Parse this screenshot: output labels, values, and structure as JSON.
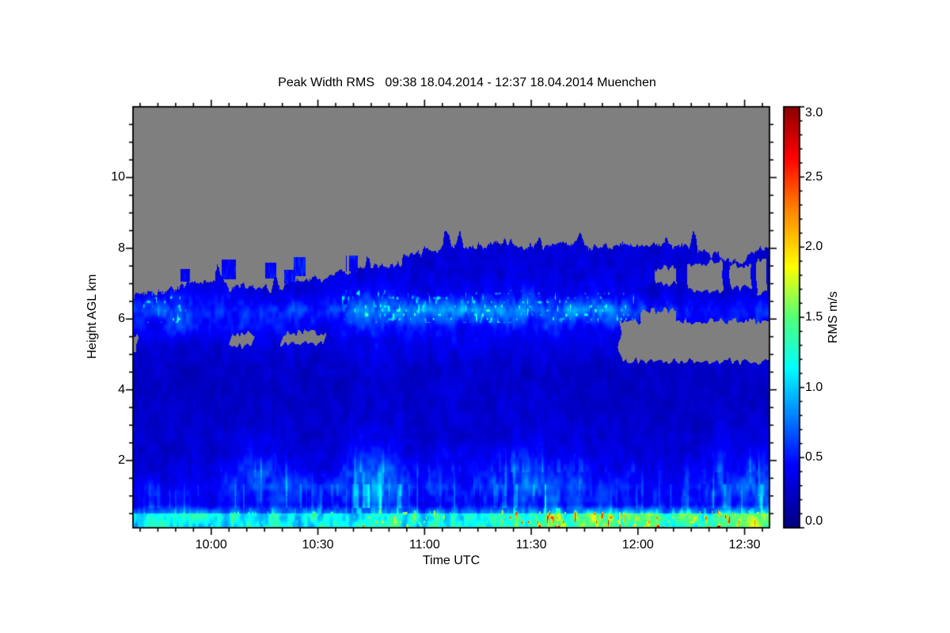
{
  "chart_data": {
    "type": "heatmap",
    "title": "Peak Width RMS   09:38 18.04.2014 - 12:37 18.04.2014 Muenchen",
    "xlabel": "Time UTC",
    "ylabel": "Height AGL km",
    "x_start": "09:38",
    "x_end": "12:37",
    "duration_min": 179,
    "x_ticks": [
      {
        "label": "10:00",
        "min": 22
      },
      {
        "label": "10:30",
        "min": 52
      },
      {
        "label": "11:00",
        "min": 82
      },
      {
        "label": "11:30",
        "min": 112
      },
      {
        "label": "12:00",
        "min": 142
      },
      {
        "label": "12:30",
        "min": 172
      }
    ],
    "x_minor_step_min": 5,
    "y_range_km": [
      0.1,
      12.0
    ],
    "y_ticks": [
      2,
      4,
      6,
      8,
      10
    ],
    "y_minor_step_km": 0.5,
    "colorbar": {
      "label": "RMS m/s",
      "min": 0.0,
      "max": 3.0,
      "ticks": [
        "0.0",
        "0.5",
        "1.0",
        "1.5",
        "2.0",
        "2.5",
        "3.0"
      ],
      "minor_step": 0.1,
      "colormap_stops": [
        [
          0.0,
          [
            0,
            0,
            127
          ]
        ],
        [
          0.15,
          [
            0,
            0,
            255
          ]
        ],
        [
          0.38,
          [
            0,
            255,
            255
          ]
        ],
        [
          0.5,
          [
            80,
            255,
            120
          ]
        ],
        [
          0.62,
          [
            255,
            255,
            0
          ]
        ],
        [
          0.76,
          [
            255,
            128,
            0
          ]
        ],
        [
          0.88,
          [
            255,
            0,
            0
          ]
        ],
        [
          1.0,
          [
            140,
            0,
            0
          ]
        ]
      ]
    },
    "no_data_color": "#7f7f7f",
    "axis_color": "#000000",
    "background_color": "#ffffff",
    "grid_time_step_min": 6,
    "grid_km_step": 0.5,
    "values": [
      [
        1.05,
        1.05,
        1.1,
        1.05,
        1.1,
        1.1,
        1.15,
        1.1,
        1.15,
        1.1,
        1.25,
        1.3,
        1.25,
        1.15,
        1.2,
        1.15,
        1.15,
        1.3,
        1.4,
        1.45,
        1.45,
        1.5,
        1.4,
        1.3,
        1.4,
        1.25,
        1.3,
        1.4,
        1.35,
        1.45
      ],
      [
        0.4,
        0.4,
        0.42,
        0.38,
        0.42,
        0.5,
        0.5,
        0.45,
        0.42,
        0.4,
        0.55,
        0.6,
        0.5,
        0.42,
        0.48,
        0.44,
        0.44,
        0.5,
        0.58,
        0.58,
        0.52,
        0.55,
        0.5,
        0.44,
        0.5,
        0.44,
        0.46,
        0.5,
        0.5,
        0.55
      ],
      [
        0.4,
        0.4,
        0.45,
        0.4,
        0.5,
        0.65,
        0.65,
        0.55,
        0.5,
        0.5,
        0.7,
        0.75,
        0.65,
        0.5,
        0.6,
        0.5,
        0.5,
        0.6,
        0.7,
        0.7,
        0.6,
        0.55,
        0.5,
        0.45,
        0.5,
        0.45,
        0.5,
        0.6,
        0.6,
        0.65
      ],
      [
        0.3,
        0.3,
        0.35,
        0.3,
        0.4,
        0.55,
        0.55,
        0.45,
        0.4,
        0.4,
        0.65,
        0.65,
        0.55,
        0.4,
        0.5,
        0.4,
        0.4,
        0.5,
        0.6,
        0.55,
        0.5,
        0.4,
        0.4,
        0.35,
        0.4,
        0.35,
        0.4,
        0.45,
        0.5,
        0.55
      ],
      [
        0.28,
        0.28,
        0.3,
        0.28,
        0.3,
        0.4,
        0.4,
        0.35,
        0.3,
        0.3,
        0.45,
        0.45,
        0.4,
        0.3,
        0.38,
        0.32,
        0.3,
        0.38,
        0.42,
        0.4,
        0.38,
        0.32,
        0.3,
        0.3,
        0.3,
        0.3,
        0.3,
        0.38,
        0.38,
        0.4
      ],
      [
        0.26,
        0.26,
        0.28,
        0.26,
        0.28,
        0.32,
        0.32,
        0.3,
        0.28,
        0.28,
        0.36,
        0.36,
        0.34,
        0.28,
        0.32,
        0.3,
        0.28,
        0.32,
        0.34,
        0.32,
        0.32,
        0.28,
        0.28,
        0.26,
        0.28,
        0.26,
        0.28,
        0.32,
        0.32,
        0.34
      ],
      [
        0.25,
        0.25,
        0.26,
        0.25,
        0.26,
        0.28,
        0.28,
        0.27,
        0.26,
        0.26,
        0.3,
        0.32,
        0.3,
        0.27,
        0.3,
        0.28,
        0.27,
        0.3,
        0.3,
        0.3,
        0.28,
        0.27,
        0.26,
        0.25,
        0.26,
        0.25,
        0.26,
        0.28,
        0.28,
        0.3
      ],
      [
        0.24,
        0.24,
        0.25,
        0.24,
        0.25,
        0.26,
        0.26,
        0.26,
        0.25,
        0.25,
        0.28,
        0.3,
        0.28,
        0.26,
        0.3,
        0.3,
        0.28,
        0.3,
        0.28,
        0.28,
        0.26,
        0.26,
        0.25,
        0.24,
        0.25,
        0.24,
        0.25,
        0.26,
        0.26,
        0.28
      ],
      [
        0.24,
        0.24,
        0.24,
        0.24,
        0.24,
        0.25,
        0.25,
        0.25,
        0.24,
        0.24,
        0.26,
        0.28,
        0.26,
        0.25,
        0.28,
        0.28,
        0.26,
        0.28,
        0.26,
        0.26,
        0.25,
        0.25,
        0.24,
        0.24,
        0.24,
        0.24,
        0.24,
        0.25,
        0.25,
        0.26
      ],
      [
        0.26,
        0.26,
        0.26,
        0.26,
        0.26,
        0.27,
        0.27,
        0.27,
        0.26,
        0.26,
        0.28,
        0.3,
        0.28,
        0.27,
        0.3,
        0.3,
        0.28,
        0.3,
        0.28,
        0.28,
        0.27,
        0.27,
        0.26,
        0.26,
        0.26,
        0.26,
        0.26,
        0.27,
        0.27,
        0.28
      ],
      [
        0.3,
        0.3,
        0.32,
        0.3,
        0.32,
        0.34,
        0.34,
        0.34,
        0.32,
        0.32,
        0.36,
        0.38,
        0.36,
        0.34,
        0.36,
        0.36,
        0.34,
        0.36,
        0.36,
        0.34,
        0.34,
        0.32,
        0.32,
        0.3,
        0.3,
        0.3,
        0.3,
        0.32,
        0.32,
        0.34
      ],
      [
        0.5,
        0.5,
        0.52,
        0.5,
        0.5,
        0.46,
        0.46,
        0.46,
        0.42,
        0.42,
        0.46,
        0.5,
        0.5,
        0.46,
        0.46,
        0.42,
        0.42,
        0.46,
        0.5,
        0.5,
        0.46,
        0.42,
        0.42,
        0.38,
        0.38,
        0.38,
        0.38,
        0.4,
        0.4,
        0.44
      ],
      [
        0.6,
        0.64,
        0.6,
        0.56,
        0.6,
        0.56,
        0.52,
        0.56,
        0.52,
        0.56,
        0.7,
        0.78,
        0.78,
        0.74,
        0.78,
        0.78,
        0.74,
        0.78,
        0.78,
        0.74,
        0.78,
        0.82,
        0.78,
        0.6,
        0.52,
        0.5,
        0.46,
        0.5,
        0.5,
        0.55
      ],
      [
        0.36,
        0.4,
        0.4,
        0.36,
        0.36,
        0.36,
        0.32,
        0.36,
        0.32,
        0.36,
        0.42,
        0.46,
        0.42,
        0.4,
        0.42,
        0.4,
        0.36,
        0.42,
        0.46,
        0.42,
        0.4,
        0.46,
        0.42,
        0.36,
        0.32,
        0.3,
        0.3,
        0.3,
        0.3,
        0.36
      ],
      [
        0.3,
        0.32,
        0.32,
        0.3,
        0.3,
        0.3,
        0.3,
        0.3,
        0.3,
        0.32,
        0.34,
        0.36,
        0.34,
        0.32,
        0.34,
        0.32,
        0.32,
        0.34,
        0.34,
        0.32,
        0.32,
        0.34,
        0.32,
        0.3,
        0.3,
        0.3,
        0.3,
        0.3,
        0.3,
        0.32
      ],
      [
        0.3,
        0.3,
        0.3,
        0.3,
        0.3,
        0.3,
        0.3,
        0.3,
        0.3,
        0.3,
        0.32,
        0.32,
        0.32,
        0.3,
        0.32,
        0.3,
        0.3,
        0.32,
        0.32,
        0.3,
        0.3,
        0.32,
        0.3,
        0.3,
        0.3,
        0.3,
        0.3,
        0.3,
        0.3,
        0.3
      ],
      [
        0.3,
        0.3,
        0.3,
        0.3,
        0.3,
        0.3,
        0.3,
        0.3,
        0.3,
        0.3,
        0.3,
        0.3,
        0.3,
        0.3,
        0.3,
        0.3,
        0.3,
        0.3,
        0.3,
        0.3,
        0.3,
        0.3,
        0.3,
        0.3,
        0.3,
        0.3,
        0.3,
        0.3,
        0.3,
        0.3
      ],
      [
        0.3,
        0.3,
        0.3,
        0.3,
        0.3,
        0.3,
        0.3,
        0.3,
        0.3,
        0.3,
        0.3,
        0.3,
        0.3,
        0.3,
        0.3,
        0.3,
        0.3,
        0.3,
        0.3,
        0.3,
        0.3,
        0.3,
        0.3,
        0.3,
        0.3,
        0.3,
        0.3,
        0.3,
        0.3,
        0.3
      ],
      [
        0.3,
        0.3,
        0.3,
        0.3,
        0.3,
        0.3,
        0.3,
        0.3,
        0.3,
        0.3,
        0.3,
        0.3,
        0.3,
        0.3,
        0.3,
        0.3,
        0.3,
        0.3,
        0.3,
        0.3,
        0.3,
        0.3,
        0.3,
        0.3,
        0.3,
        0.3,
        0.3,
        0.3,
        0.3,
        0.3
      ],
      [
        0.3,
        0.3,
        0.3,
        0.3,
        0.3,
        0.3,
        0.3,
        0.3,
        0.3,
        0.3,
        0.3,
        0.3,
        0.3,
        0.3,
        0.3,
        0.3,
        0.3,
        0.3,
        0.3,
        0.3,
        0.3,
        0.3,
        0.3,
        0.3,
        0.3,
        0.3,
        0.3,
        0.3,
        0.3,
        0.3
      ],
      [
        0.3,
        0.3,
        0.3,
        0.3,
        0.3,
        0.3,
        0.3,
        0.3,
        0.3,
        0.3,
        0.3,
        0.3,
        0.3,
        0.3,
        0.3,
        0.3,
        0.3,
        0.3,
        0.3,
        0.3,
        0.3,
        0.3,
        0.3,
        0.3,
        0.3,
        0.3,
        0.3,
        0.3,
        0.3,
        0.3
      ],
      [
        0.3,
        0.3,
        0.3,
        0.3,
        0.3,
        0.3,
        0.3,
        0.3,
        0.3,
        0.3,
        0.3,
        0.3,
        0.3,
        0.3,
        0.3,
        0.3,
        0.3,
        0.3,
        0.3,
        0.3,
        0.3,
        0.3,
        0.3,
        0.3,
        0.3,
        0.3,
        0.3,
        0.3,
        0.3,
        0.3
      ],
      [
        0.3,
        0.3,
        0.3,
        0.3,
        0.3,
        0.3,
        0.3,
        0.3,
        0.3,
        0.3,
        0.3,
        0.3,
        0.3,
        0.3,
        0.3,
        0.3,
        0.3,
        0.3,
        0.3,
        0.3,
        0.3,
        0.3,
        0.3,
        0.3,
        0.3,
        0.3,
        0.3,
        0.3,
        0.3,
        0.3
      ],
      [
        0.3,
        0.3,
        0.3,
        0.3,
        0.3,
        0.3,
        0.3,
        0.3,
        0.3,
        0.3,
        0.3,
        0.3,
        0.3,
        0.3,
        0.3,
        0.3,
        0.3,
        0.3,
        0.3,
        0.3,
        0.3,
        0.3,
        0.3,
        0.3,
        0.3,
        0.3,
        0.3,
        0.3,
        0.3,
        0.3
      ]
    ],
    "cloud_top_km": [
      6.65,
      6.8,
      7.0,
      7.1,
      6.9,
      6.95,
      6.85,
      6.95,
      7.1,
      7.3,
      7.35,
      7.5,
      7.6,
      7.9,
      8.0,
      8.1,
      8.0,
      8.2,
      8.0,
      8.1,
      8.2,
      8.0,
      8.1,
      8.1,
      8.1,
      8.1,
      7.9,
      7.8,
      7.6,
      8.0
    ],
    "surface_speckle_max": [
      1.3,
      1.3,
      1.4,
      1.3,
      1.5,
      1.6,
      1.6,
      1.7,
      1.6,
      1.5,
      2.6,
      2.8,
      2.0,
      1.7,
      1.9,
      1.8,
      1.7,
      2.6,
      3.0,
      3.0,
      3.0,
      3.0,
      2.8,
      2.4,
      2.8,
      2.0,
      2.4,
      3.0,
      2.6,
      3.0
    ],
    "wisp_strength": [
      0.25,
      0.25,
      0.3,
      0.25,
      0.35,
      0.7,
      0.7,
      0.55,
      0.45,
      0.4,
      0.8,
      0.9,
      0.75,
      0.5,
      0.6,
      0.45,
      0.4,
      0.6,
      0.8,
      0.85,
      0.7,
      0.6,
      0.5,
      0.4,
      0.45,
      0.35,
      0.45,
      0.6,
      0.65,
      0.75
    ],
    "no_data_regions": [
      {
        "t0": 137,
        "t1": 181,
        "b": 4.8,
        "p": 5.95
      },
      {
        "t0": 143,
        "t1": 153,
        "b": 5.8,
        "p": 6.25
      },
      {
        "t0": 27.5,
        "t1": 34,
        "b": 5.25,
        "p": 5.6
      },
      {
        "t0": 42,
        "t1": 54,
        "b": 5.3,
        "p": 5.6
      },
      {
        "t0": -2,
        "t1": 1.5,
        "b": 5.15,
        "p": 5.5
      },
      {
        "t0": 147,
        "t1": 153,
        "b": 7.0,
        "p": 7.45
      },
      {
        "t0": 156,
        "t1": 166,
        "b": 6.8,
        "p": 7.6
      },
      {
        "t0": 168,
        "t1": 174,
        "b": 6.9,
        "p": 7.5
      },
      {
        "t0": 175.5,
        "t1": 178.3,
        "b": 6.75,
        "p": 7.7
      }
    ],
    "data_islands": [
      {
        "t_min": 15,
        "km": 7.25
      },
      {
        "t_min": 27,
        "km": 7.45
      },
      {
        "t_min": 38.5,
        "km": 7.4
      },
      {
        "t_min": 44.5,
        "km": 7.15
      },
      {
        "t_min": 47,
        "km": 7.5
      },
      {
        "t_min": 62,
        "km": 7.55
      }
    ]
  }
}
